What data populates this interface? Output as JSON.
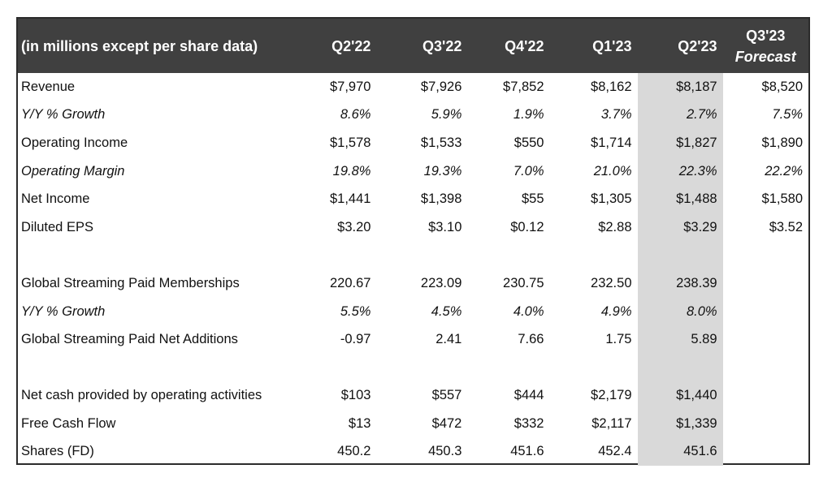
{
  "header": {
    "label": "(in millions except per share data)",
    "columns": [
      "Q2'22",
      "Q3'22",
      "Q4'22",
      "Q1'23",
      "Q2'23"
    ],
    "forecast_line1": "Q3'23",
    "forecast_line2": "Forecast"
  },
  "rows": [
    {
      "label": "Revenue",
      "values": [
        "$7,970",
        "$7,926",
        "$7,852",
        "$8,162",
        "$8,187",
        "$8,520"
      ]
    },
    {
      "label": "Y/Y % Growth",
      "values": [
        "8.6%",
        "5.9%",
        "1.9%",
        "3.7%",
        "2.7%",
        "7.5%"
      ]
    },
    {
      "label": "Operating Income",
      "values": [
        "$1,578",
        "$1,533",
        "$550",
        "$1,714",
        "$1,827",
        "$1,890"
      ]
    },
    {
      "label": "Operating Margin",
      "values": [
        "19.8%",
        "19.3%",
        "7.0%",
        "21.0%",
        "22.3%",
        "22.2%"
      ]
    },
    {
      "label": "Net Income",
      "values": [
        "$1,441",
        "$1,398",
        "$55",
        "$1,305",
        "$1,488",
        "$1,580"
      ]
    },
    {
      "label": "Diluted EPS",
      "values": [
        "$3.20",
        "$3.10",
        "$0.12",
        "$2.88",
        "$3.29",
        "$3.52"
      ]
    },
    {
      "label": "Global Streaming Paid Memberships",
      "values": [
        "220.67",
        "223.09",
        "230.75",
        "232.50",
        "238.39",
        ""
      ]
    },
    {
      "label": "Y/Y % Growth",
      "values": [
        "5.5%",
        "4.5%",
        "4.0%",
        "4.9%",
        "8.0%",
        ""
      ]
    },
    {
      "label": "Global Streaming Paid Net Additions",
      "values": [
        "-0.97",
        "2.41",
        "7.66",
        "1.75",
        "5.89",
        ""
      ]
    },
    {
      "label": "Net cash provided by operating activities",
      "values": [
        "$103",
        "$557",
        "$444",
        "$2,179",
        "$1,440",
        ""
      ]
    },
    {
      "label": "Free Cash Flow",
      "values": [
        "$13",
        "$472",
        "$332",
        "$2,117",
        "$1,339",
        ""
      ]
    },
    {
      "label": "Shares (FD)",
      "values": [
        "450.2",
        "450.3",
        "451.6",
        "452.4",
        "451.6",
        ""
      ]
    }
  ]
}
